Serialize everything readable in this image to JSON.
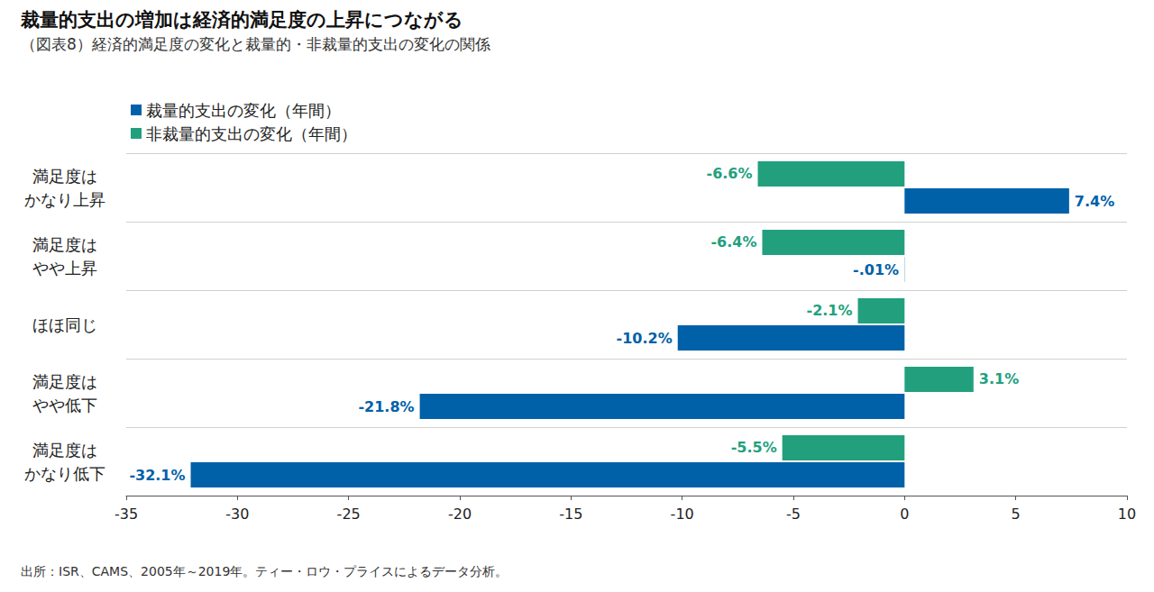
{
  "chart_data": {
    "type": "bar",
    "orientation": "horizontal",
    "title": "裁量的支出の増加は経済的満足度の上昇につながる",
    "subtitle": "（図表8）経済的満足度の変化と裁量的・非裁量的支出の変化の関係",
    "note": "出所：ISR、CAMS、2005年～2019年。ティー・ロウ・プライスによるデータ分析。",
    "categories": [
      "満足度は\nかなり上昇",
      "満足度は\nやや上昇",
      "ほほ同じ",
      "満足度は\nやや低下",
      "満足度は\nかなり低下"
    ],
    "series": [
      {
        "name": "裁量的支出の変化（年間）",
        "color": "#0061a8",
        "values": [
          7.4,
          -0.01,
          -10.2,
          -21.8,
          -32.1
        ],
        "value_labels": [
          "7.4%",
          "-.01%",
          "-10.2%",
          "-21.8%",
          "-32.1%"
        ]
      },
      {
        "name": "非裁量的支出の変化（年間）",
        "color": "#22a07e",
        "values": [
          -6.6,
          -6.4,
          -2.1,
          3.1,
          -5.5
        ],
        "value_labels": [
          "-6.6%",
          "-6.4%",
          "-2.1%",
          "3.1%",
          "-5.5%"
        ]
      }
    ],
    "xlim": [
      -35,
      10
    ],
    "xticks": [
      -35,
      -30,
      -25,
      -20,
      -15,
      -10,
      -5,
      0,
      5,
      10
    ],
    "grid": true,
    "legend": "top-left",
    "data_labels": true
  }
}
